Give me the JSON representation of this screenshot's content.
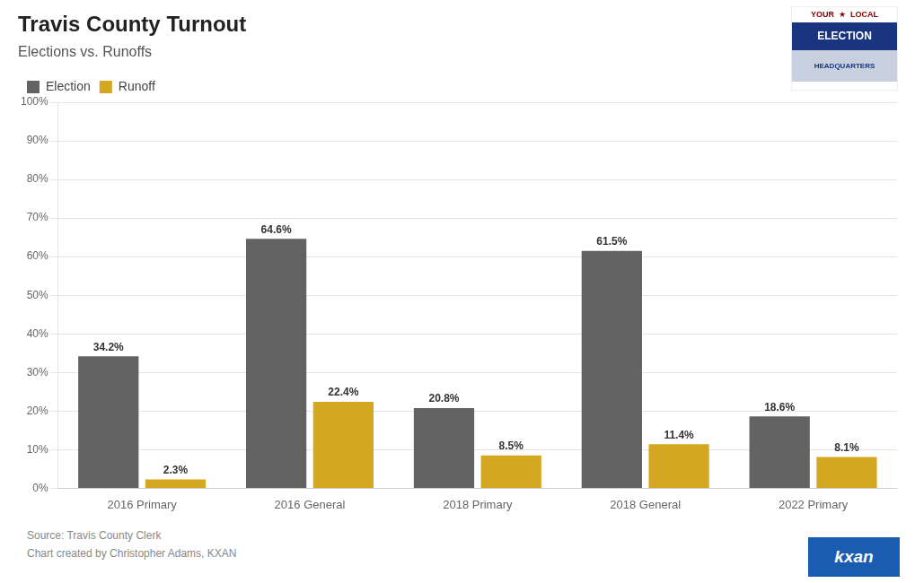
{
  "chart_data": {
    "type": "bar",
    "title": "Travis County Turnout",
    "subtitle": "Elections vs. Runoffs",
    "categories": [
      "2016 Primary",
      "2016 General",
      "2018 Primary",
      "2018 General",
      "2022 Primary"
    ],
    "series": [
      {
        "name": "Election",
        "color": "#636363",
        "values": [
          34.2,
          64.6,
          20.8,
          61.5,
          18.6
        ],
        "value_labels": [
          "34.2%",
          "64.6%",
          "20.8%",
          "61.5%",
          "18.6%"
        ]
      },
      {
        "name": "Runoff",
        "color": "#D4A820",
        "values": [
          2.3,
          22.4,
          8.5,
          11.4,
          8.1
        ],
        "value_labels": [
          "2.3%",
          "22.4%",
          "8.5%",
          "11.4%",
          "8.1%"
        ]
      }
    ],
    "ylim": [
      0,
      100
    ],
    "yticks": [
      {
        "value": 0,
        "label": "0%"
      },
      {
        "value": 10,
        "label": "10%"
      },
      {
        "value": 20,
        "label": "20%"
      },
      {
        "value": 30,
        "label": "30%"
      },
      {
        "value": 40,
        "label": "40%"
      },
      {
        "value": 50,
        "label": "50%"
      },
      {
        "value": 60,
        "label": "60%"
      },
      {
        "value": 70,
        "label": "70%"
      },
      {
        "value": 80,
        "label": "80%"
      },
      {
        "value": 90,
        "label": "90%"
      },
      {
        "value": 100,
        "label": "100%"
      }
    ],
    "grid": true,
    "legend": "top-left",
    "data_labels": true,
    "annotations": [
      "Source: Travis County Clerk",
      "Chart created by Christopher Adams, KXAN",
      "YOUR  ★  LOCAL",
      "ELECTION",
      "HEADQUARTERS",
      "kxan"
    ]
  }
}
